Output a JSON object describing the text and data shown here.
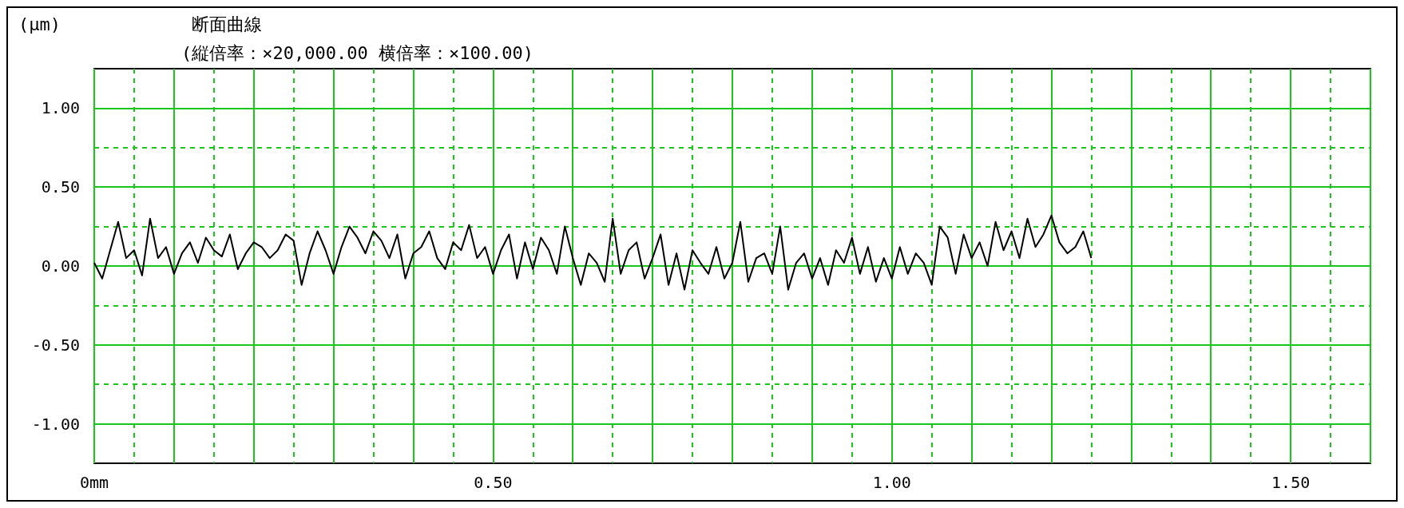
{
  "chart_data": {
    "type": "line",
    "title": "断面曲線",
    "subtitle": "(縦倍率：×20,000.00 横倍率：×100.00)",
    "ylabel": "(μm)",
    "x": [
      0,
      0.01,
      0.02,
      0.03,
      0.04,
      0.05,
      0.06,
      0.07,
      0.08,
      0.09,
      0.1,
      0.11,
      0.12,
      0.13,
      0.14,
      0.15,
      0.16,
      0.17,
      0.18,
      0.19,
      0.2,
      0.21,
      0.22,
      0.23,
      0.24,
      0.25,
      0.26,
      0.27,
      0.28,
      0.29,
      0.3,
      0.31,
      0.32,
      0.33,
      0.34,
      0.35,
      0.36,
      0.37,
      0.38,
      0.39,
      0.4,
      0.41,
      0.42,
      0.43,
      0.44,
      0.45,
      0.46,
      0.47,
      0.48,
      0.49,
      0.5,
      0.51,
      0.52,
      0.53,
      0.54,
      0.55,
      0.56,
      0.57,
      0.58,
      0.59,
      0.6,
      0.61,
      0.62,
      0.63,
      0.64,
      0.65,
      0.66,
      0.67,
      0.68,
      0.69,
      0.7,
      0.71,
      0.72,
      0.73,
      0.74,
      0.75,
      0.76,
      0.77,
      0.78,
      0.79,
      0.8,
      0.81,
      0.82,
      0.83,
      0.84,
      0.85,
      0.86,
      0.87,
      0.88,
      0.89,
      0.9,
      0.91,
      0.92,
      0.93,
      0.94,
      0.95,
      0.96,
      0.97,
      0.98,
      0.99,
      1,
      1.01,
      1.02,
      1.03,
      1.04,
      1.05,
      1.06,
      1.07,
      1.08,
      1.09,
      1.1,
      1.11,
      1.12,
      1.13,
      1.14,
      1.15,
      1.16,
      1.17,
      1.18,
      1.19,
      1.2,
      1.21,
      1.22,
      1.23,
      1.24,
      1.25
    ],
    "series": [
      {
        "color": "#000000",
        "values": [
          0.02,
          -0.08,
          0.1,
          0.28,
          0.05,
          0.1,
          -0.06,
          0.3,
          0.05,
          0.12,
          -0.05,
          0.08,
          0.15,
          0.02,
          0.18,
          0.1,
          0.06,
          0.2,
          -0.02,
          0.08,
          0.15,
          0.12,
          0.05,
          0.1,
          0.2,
          0.16,
          -0.12,
          0.08,
          0.22,
          0.1,
          -0.05,
          0.12,
          0.25,
          0.18,
          0.08,
          0.22,
          0.16,
          0.05,
          0.2,
          -0.08,
          0.08,
          0.12,
          0.22,
          0.05,
          -0.02,
          0.15,
          0.1,
          0.26,
          0.05,
          0.12,
          -0.05,
          0.1,
          0.2,
          -0.08,
          0.15,
          -0.02,
          0.18,
          0.1,
          -0.05,
          0.25,
          0.05,
          -0.12,
          0.08,
          0.02,
          -0.1,
          0.3,
          -0.05,
          0.1,
          0.15,
          -0.08,
          0.05,
          0.2,
          -0.12,
          0.08,
          -0.15,
          0.1,
          0.02,
          -0.05,
          0.12,
          -0.08,
          0.02,
          0.28,
          -0.1,
          0.05,
          0.08,
          -0.05,
          0.25,
          -0.15,
          0.02,
          0.08,
          -0.08,
          0.05,
          -0.12,
          0.1,
          0.02,
          0.18,
          -0.05,
          0.12,
          -0.1,
          0.05,
          -0.08,
          0.12,
          -0.05,
          0.08,
          0.02,
          -0.12,
          0.25,
          0.18,
          -0.05,
          0.2,
          0.05,
          0.15,
          0,
          0.28,
          0.1,
          0.22,
          0.05,
          0.3,
          0.12,
          0.2,
          0.32,
          0.15,
          0.08,
          0.12,
          0.22,
          0.05
        ]
      }
    ],
    "xlim": [
      0,
      1.6
    ],
    "xticks": [
      {
        "value": 0,
        "label": "0mm"
      },
      {
        "value": 0.05,
        "label": null
      },
      {
        "value": 0.1,
        "label": null
      },
      {
        "value": 0.15,
        "label": null
      },
      {
        "value": 0.2,
        "label": null
      },
      {
        "value": 0.25,
        "label": null
      },
      {
        "value": 0.3,
        "label": null
      },
      {
        "value": 0.35,
        "label": null
      },
      {
        "value": 0.4,
        "label": null
      },
      {
        "value": 0.45,
        "label": null
      },
      {
        "value": 0.5,
        "label": "0.50"
      },
      {
        "value": 0.55,
        "label": null
      },
      {
        "value": 0.6,
        "label": null
      },
      {
        "value": 0.65,
        "label": null
      },
      {
        "value": 0.7,
        "label": null
      },
      {
        "value": 0.75,
        "label": null
      },
      {
        "value": 0.8,
        "label": null
      },
      {
        "value": 0.85,
        "label": null
      },
      {
        "value": 0.9,
        "label": null
      },
      {
        "value": 0.95,
        "label": null
      },
      {
        "value": 1,
        "label": "1.00"
      },
      {
        "value": 1.05,
        "label": null
      },
      {
        "value": 1.1,
        "label": null
      },
      {
        "value": 1.15,
        "label": null
      },
      {
        "value": 1.2,
        "label": null
      },
      {
        "value": 1.25,
        "label": null
      },
      {
        "value": 1.3,
        "label": null
      },
      {
        "value": 1.35,
        "label": null
      },
      {
        "value": 1.4,
        "label": null
      },
      {
        "value": 1.45,
        "label": null
      },
      {
        "value": 1.5,
        "label": "1.50"
      },
      {
        "value": 1.55,
        "label": null
      },
      {
        "value": 1.6,
        "label": null
      }
    ],
    "ylim": [
      -1.25,
      1.25
    ],
    "yticks": [
      {
        "value": -1,
        "label": "-1.00"
      },
      {
        "value": -0.75,
        "label": null
      },
      {
        "value": -0.5,
        "label": "-0.50"
      },
      {
        "value": -0.25,
        "label": null
      },
      {
        "value": 0,
        "label": "0.00"
      },
      {
        "value": 0.25,
        "label": null
      },
      {
        "value": 0.5,
        "label": "0.50"
      },
      {
        "value": 0.75,
        "label": null
      },
      {
        "value": 1,
        "label": "1.00"
      }
    ],
    "grid": true,
    "marker": "none",
    "line_style": "solid"
  }
}
